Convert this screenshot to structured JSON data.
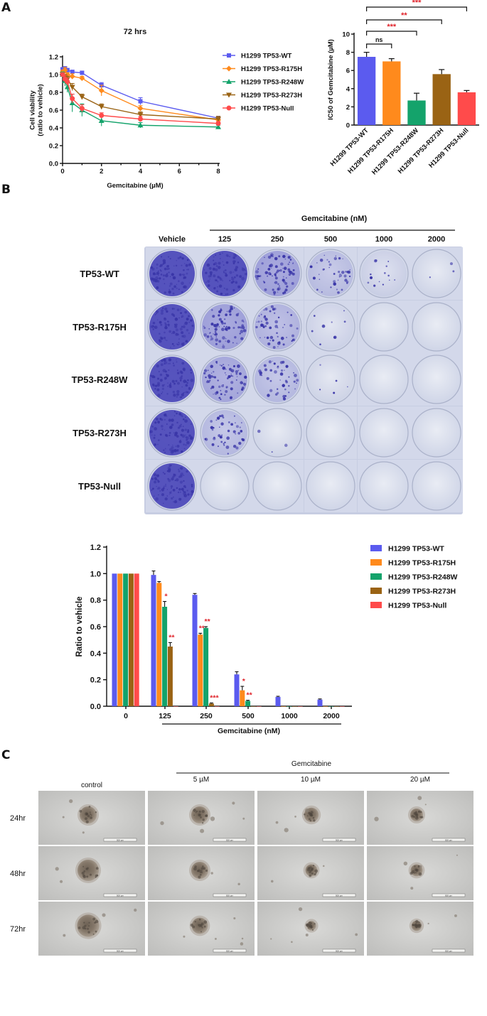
{
  "panels": {
    "a": "A",
    "b": "B",
    "c": "C"
  },
  "colors": {
    "WT": "#5b5bef",
    "R175H": "#ff8a1c",
    "R248W": "#14a36b",
    "R273H": "#9a6314",
    "Null": "#ff4b4b",
    "sig": "#e0242b"
  },
  "chart_data": [
    {
      "type": "line",
      "title": "72 hrs",
      "xlabel": "Gemcitabine (µM)",
      "ylabel": "Cell viability\n(ratio to vehicle)",
      "xlim": [
        0,
        8
      ],
      "ylim": [
        0,
        1.2
      ],
      "xticks": [
        "0",
        "2",
        "4",
        "6",
        "8"
      ],
      "yticks": [
        "0.0",
        "0.2",
        "0.4",
        "0.6",
        "0.8",
        "1.0",
        "1.2"
      ],
      "x": [
        0,
        0.125,
        0.25,
        0.5,
        1,
        2,
        4,
        8
      ],
      "series": [
        {
          "name": "H1299 TP53-WT",
          "key": "WT",
          "marker": "square",
          "values": [
            1.06,
            1.07,
            1.05,
            1.03,
            1.02,
            0.88,
            0.7,
            0.51
          ],
          "err": [
            0.02,
            0.02,
            0.02,
            0.02,
            0.02,
            0.03,
            0.04,
            0.02
          ]
        },
        {
          "name": "H1299 TP53-R175H",
          "key": "R175H",
          "marker": "diamond",
          "values": [
            1.03,
            1.05,
            1.0,
            0.98,
            0.96,
            0.82,
            0.62,
            0.49
          ],
          "err": [
            0.02,
            0.03,
            0.02,
            0.03,
            0.02,
            0.06,
            0.03,
            0.02
          ]
        },
        {
          "name": "H1299 TP53-R248W",
          "key": "R248W",
          "marker": "triangle",
          "values": [
            1.0,
            0.93,
            0.86,
            0.68,
            0.6,
            0.48,
            0.43,
            0.41
          ],
          "err": [
            0.03,
            0.06,
            0.06,
            0.1,
            0.07,
            0.06,
            0.03,
            0.02
          ]
        },
        {
          "name": "H1299 TP53-R273H",
          "key": "R273H",
          "marker": "tridown",
          "values": [
            1.0,
            0.97,
            0.95,
            0.86,
            0.75,
            0.64,
            0.55,
            0.5
          ],
          "err": [
            0.02,
            0.03,
            0.03,
            0.04,
            0.03,
            0.03,
            0.03,
            0.03
          ]
        },
        {
          "name": "H1299 TP53-Null",
          "key": "Null",
          "marker": "circle",
          "values": [
            1.0,
            0.95,
            0.92,
            0.73,
            0.62,
            0.54,
            0.5,
            0.45
          ],
          "err": [
            0.02,
            0.04,
            0.04,
            0.05,
            0.04,
            0.03,
            0.03,
            0.02
          ]
        }
      ]
    },
    {
      "type": "bar",
      "ylabel": "IC50 of Gemcitabine (µM)",
      "ylim": [
        0,
        10
      ],
      "yticks": [
        "0",
        "2",
        "4",
        "6",
        "8",
        "10"
      ],
      "categories": [
        "H1299 TP53-WT",
        "H1299 TP53-R175H",
        "H1299 TP53-R248W",
        "H1299 TP53-R273H",
        "H1299 TP53-Null"
      ],
      "keys": [
        "WT",
        "R175H",
        "R248W",
        "R273H",
        "Null"
      ],
      "values": [
        7.5,
        7.0,
        2.7,
        5.6,
        3.6
      ],
      "err": [
        0.5,
        0.3,
        0.8,
        0.5,
        0.2
      ],
      "annotations": [
        {
          "from": 0,
          "to": 1,
          "label": "ns"
        },
        {
          "from": 0,
          "to": 2,
          "label": "***"
        },
        {
          "from": 0,
          "to": 3,
          "label": "**"
        },
        {
          "from": 0,
          "to": 4,
          "label": "***"
        }
      ]
    },
    {
      "type": "bar",
      "ylabel": "Ratio to vehicle",
      "xlabel": "Gemcitabine (nM)",
      "ylim": [
        0,
        1.2
      ],
      "yticks": [
        "0.0",
        "0.2",
        "0.4",
        "0.6",
        "0.8",
        "1.0",
        "1.2"
      ],
      "categories": [
        "0",
        "125",
        "250",
        "500",
        "1000",
        "2000"
      ],
      "series": [
        {
          "name": "H1299 TP53-WT",
          "key": "WT",
          "values": [
            1.0,
            0.99,
            0.84,
            0.24,
            0.07,
            0.05
          ],
          "err": [
            0.0,
            0.03,
            0.01,
            0.02,
            0.005,
            0.005
          ],
          "sig": [
            "",
            "",
            "",
            "",
            "",
            ""
          ]
        },
        {
          "name": "H1299 TP53-R175H",
          "key": "R175H",
          "values": [
            1.0,
            0.93,
            0.54,
            0.12,
            0.0,
            0.0
          ],
          "err": [
            0.0,
            0.01,
            0.01,
            0.03,
            0,
            0
          ],
          "sig": [
            "",
            "",
            "**",
            "*",
            "",
            ""
          ]
        },
        {
          "name": "H1299 TP53-R248W",
          "key": "R248W",
          "values": [
            1.0,
            0.75,
            0.59,
            0.04,
            0.0,
            0.0
          ],
          "err": [
            0.0,
            0.04,
            0.01,
            0.005,
            0,
            0
          ],
          "sig": [
            "",
            "*",
            "**",
            "**",
            "",
            ""
          ]
        },
        {
          "name": "H1299 TP53-R273H",
          "key": "R273H",
          "values": [
            1.0,
            0.45,
            0.02,
            0.0,
            0.0,
            0.0
          ],
          "err": [
            0.0,
            0.03,
            0.005,
            0,
            0,
            0
          ],
          "sig": [
            "",
            "**",
            "***",
            "",
            "",
            ""
          ]
        },
        {
          "name": "H1299 TP53-Null",
          "key": "Null",
          "values": [
            1.0,
            0.0,
            0.0,
            0.0,
            0.0,
            0.0
          ],
          "err": [
            0,
            0,
            0,
            0,
            0,
            0
          ],
          "sig": [
            "",
            "",
            "",
            "",
            "",
            ""
          ]
        }
      ]
    }
  ],
  "plates": {
    "header": "Gemcitabine (nM)",
    "columns": [
      "Vehicle",
      "125",
      "250",
      "500",
      "1000",
      "2000"
    ],
    "rows": [
      "TP53-WT",
      "TP53-R175H",
      "TP53-R248W",
      "TP53-R273H",
      "TP53-Null"
    ],
    "density": [
      [
        1.0,
        1.0,
        0.9,
        0.45,
        0.15,
        0.03
      ],
      [
        1.0,
        0.9,
        0.6,
        0.1,
        0.0,
        0.0
      ],
      [
        1.0,
        0.8,
        0.5,
        0.05,
        0.0,
        0.0
      ],
      [
        1.0,
        0.5,
        0.03,
        0.0,
        0.0,
        0.0
      ],
      [
        1.0,
        0.0,
        0.0,
        0.0,
        0.0,
        0.0
      ]
    ]
  },
  "spheroids": {
    "header": "Gemcitabine",
    "columns": [
      "control",
      "5 µM",
      "10 µM",
      "20 µM"
    ],
    "rows": [
      "24hr",
      "48hr",
      "72hr"
    ],
    "scale_text": "500 µm",
    "size": [
      [
        1.0,
        1.0,
        0.85,
        0.75
      ],
      [
        1.25,
        1.0,
        0.7,
        0.7
      ],
      [
        1.3,
        0.95,
        0.55,
        0.6
      ]
    ]
  }
}
